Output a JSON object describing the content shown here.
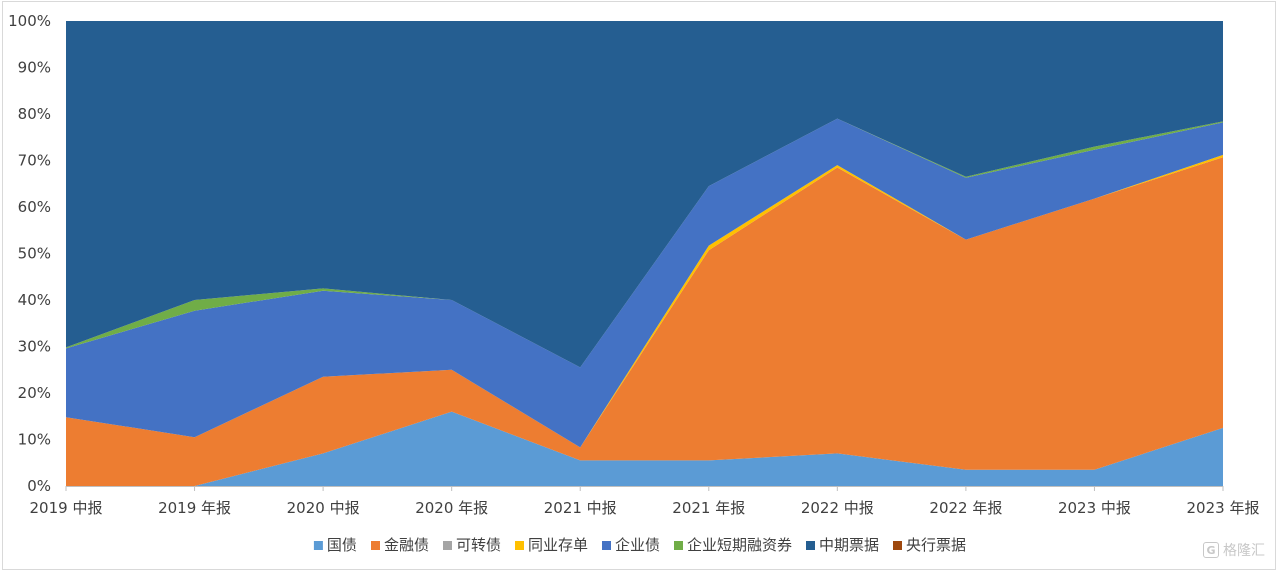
{
  "chart_data": {
    "type": "area",
    "stacked": "percent",
    "categories": [
      "2019 中报",
      "2019 年报",
      "2020 中报",
      "2020 年报",
      "2021 中报",
      "2021 年报",
      "2022 中报",
      "2022 年报",
      "2023 中报",
      "2023 年报"
    ],
    "yticks": [
      "0%",
      "10%",
      "20%",
      "30%",
      "40%",
      "50%",
      "60%",
      "70%",
      "80%",
      "90%",
      "100%"
    ],
    "ylim": [
      0,
      100
    ],
    "grid": false,
    "legend_position": "bottom",
    "series": [
      {
        "name": "国债",
        "color": "#5b9bd5",
        "values": [
          0,
          0,
          7,
          16,
          5.5,
          5.5,
          7,
          3.5,
          3.5,
          12.5
        ]
      },
      {
        "name": "金融债",
        "color": "#ed7d31",
        "values": [
          14.8,
          10.5,
          16.5,
          9,
          2.8,
          45.2,
          61.5,
          49.5,
          58.3,
          58.2
        ]
      },
      {
        "name": "可转债",
        "color": "#a5a5a5",
        "values": [
          0,
          0,
          0,
          0,
          0,
          0,
          0,
          0,
          0,
          0
        ]
      },
      {
        "name": "同业存单",
        "color": "#ffc000",
        "values": [
          0,
          0,
          0,
          0,
          0,
          1,
          0.5,
          0,
          0,
          0.5
        ]
      },
      {
        "name": "企业债",
        "color": "#4472c4",
        "values": [
          14.8,
          27.2,
          18.5,
          15,
          17.2,
          12.8,
          10,
          13.3,
          10.5,
          7
        ]
      },
      {
        "name": "企业短期融资券",
        "color": "#70ad47",
        "values": [
          0.2,
          2.3,
          0.5,
          0,
          0,
          0,
          0,
          0.2,
          0.7,
          0.2
        ]
      },
      {
        "name": "中期票据",
        "color": "#255e91",
        "values": [
          70.2,
          60,
          57.5,
          60,
          74.5,
          35.5,
          21,
          33.5,
          27,
          21.6
        ]
      },
      {
        "name": "央行票据",
        "color": "#9e480e",
        "values": [
          0,
          0,
          0,
          0,
          0,
          0,
          0,
          0,
          0,
          0
        ]
      }
    ]
  },
  "watermark": {
    "icon": "G",
    "text": "格隆汇"
  }
}
